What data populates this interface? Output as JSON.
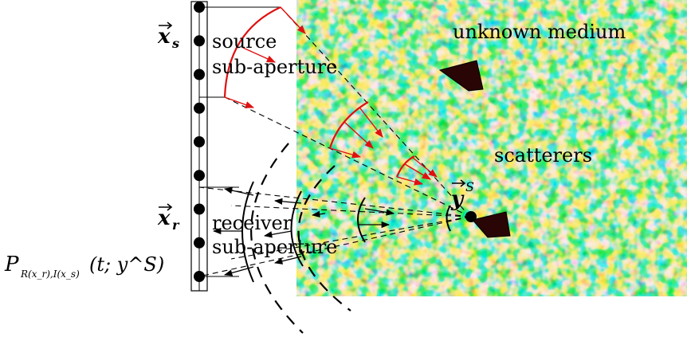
{
  "labels": {
    "source_line1": "source",
    "source_line2": "sub-aperture",
    "receiver_line1": "receiver",
    "receiver_line2": "sub-aperture",
    "unknown_medium": "unknown medium",
    "scatterers": "scatterers",
    "xs_symbol": "x",
    "xs_subscript": "s",
    "xr_symbol": "x",
    "xr_subscript": "r",
    "ys_symbol": "y",
    "ys_superscript": "S",
    "formula_P": "P",
    "formula_subscript": "R(x_r),I(x_s)",
    "formula_args": "(t; y^S)"
  },
  "colors": {
    "wavefront_source": "#e01010",
    "arrow_source": "#e01010",
    "wavefront_receiver": "#000000",
    "scatterer_fill": "#2a0505",
    "medium_base": "#1aa8a0"
  },
  "array": {
    "element_count": 9
  }
}
